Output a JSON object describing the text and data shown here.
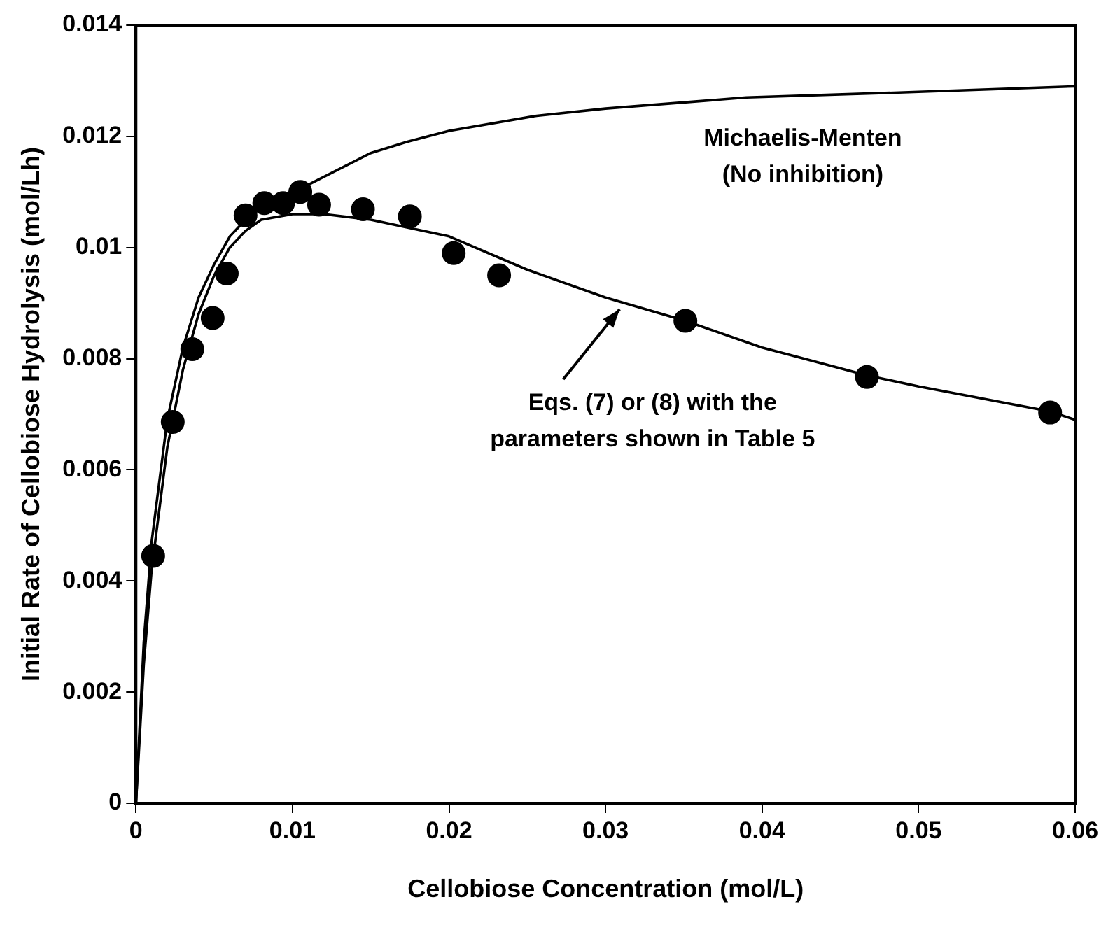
{
  "chart_data": {
    "type": "scatter",
    "xlabel": "Cellobiose Concentration (mol/L)",
    "ylabel": "Initial Rate of Cellobiose Hydrolysis (mol/Lh)",
    "xlim": [
      0,
      0.06
    ],
    "xticks": [
      0,
      0.01,
      0.02,
      0.03,
      0.04,
      0.05,
      0.06
    ],
    "ylim": [
      0,
      0.014
    ],
    "yticks": [
      0,
      0.002,
      0.004,
      0.006,
      0.008,
      0.01,
      0.012,
      0.014
    ],
    "grid": false,
    "legend": false,
    "series": [
      {
        "marker": "circle",
        "color": "#000000",
        "x": [
          0.0011,
          0.00235,
          0.0036,
          0.0049,
          0.0058,
          0.007,
          0.0082,
          0.0094,
          0.0105,
          0.0117,
          0.0145,
          0.0175,
          0.0203,
          0.0232,
          0.0351,
          0.0467,
          0.0584
        ],
        "values": [
          0.00445,
          0.00686,
          0.00817,
          0.00873,
          0.00953,
          0.01058,
          0.0108,
          0.0108,
          0.011,
          0.01077,
          0.01069,
          0.01056,
          0.0099,
          0.0095,
          0.00868,
          0.00767,
          0.00703
        ]
      },
      {
        "type": "line",
        "marker": "none",
        "color": "#000000",
        "x": [
          0,
          0.0005,
          0.001,
          0.002,
          0.003,
          0.004,
          0.005,
          0.006,
          0.008,
          0.0108,
          0.015,
          0.0173,
          0.02,
          0.0256,
          0.03,
          0.039,
          0.05,
          0.06
        ],
        "values": [
          0,
          0.0029,
          0.0047,
          0.0069,
          0.0082,
          0.0091,
          0.0097,
          0.0102,
          0.0108,
          0.0111,
          0.0117,
          0.0119,
          0.0121,
          0.01237,
          0.0125,
          0.0127,
          0.0128,
          0.0129
        ]
      },
      {
        "type": "line",
        "marker": "none",
        "color": "#000000",
        "x": [
          0,
          0.0005,
          0.001,
          0.002,
          0.003,
          0.004,
          0.005,
          0.006,
          0.007,
          0.008,
          0.01,
          0.012,
          0.015,
          0.02,
          0.025,
          0.03,
          0.0351,
          0.04,
          0.0467,
          0.05,
          0.0584,
          0.06
        ],
        "values": [
          0,
          0.0025,
          0.0042,
          0.0064,
          0.0078,
          0.0088,
          0.0095,
          0.01,
          0.0103,
          0.0105,
          0.0106,
          0.0106,
          0.0105,
          0.0102,
          0.0096,
          0.0091,
          0.00868,
          0.0082,
          0.0077,
          0.0075,
          0.00705,
          0.0069
        ]
      }
    ],
    "annotations": [
      "Michaelis-Menten\n(No inhibition)",
      "Eqs. (7) or (8) with the\nparameters shown in Table 5"
    ]
  }
}
